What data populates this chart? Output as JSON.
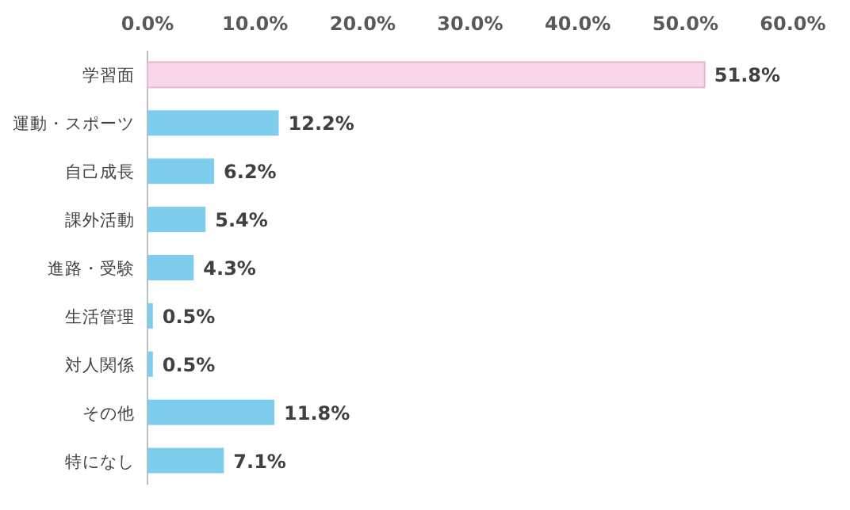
{
  "chart_data": {
    "type": "bar",
    "orientation": "horizontal",
    "categories": [
      "学習面",
      "運動・スポーツ",
      "自己成長",
      "課外活動",
      "進路・受験",
      "生活管理",
      "対人関係",
      "その他",
      "特になし"
    ],
    "values": [
      51.8,
      12.2,
      6.2,
      5.4,
      4.3,
      0.5,
      0.5,
      11.8,
      7.1
    ],
    "colors": [
      "#f8d7e8",
      "#7ecdec",
      "#7ecdec",
      "#7ecdec",
      "#7ecdec",
      "#7ecdec",
      "#7ecdec",
      "#7ecdec",
      "#7ecdec"
    ],
    "value_labels": [
      "51.8%",
      "12.2%",
      "6.2%",
      "5.4%",
      "4.3%",
      "0.5%",
      "0.5%",
      "11.8%",
      "7.1%"
    ],
    "xlim": [
      0,
      60
    ],
    "xticks": [
      {
        "value": 0,
        "label": "0.0%"
      },
      {
        "value": 10,
        "label": "10.0%"
      },
      {
        "value": 20,
        "label": "20.0%"
      },
      {
        "value": 30,
        "label": "30.0%"
      },
      {
        "value": 40,
        "label": "40.0%"
      },
      {
        "value": 50,
        "label": "50.0%"
      },
      {
        "value": 60,
        "label": "60.0%"
      }
    ],
    "grid": false
  }
}
